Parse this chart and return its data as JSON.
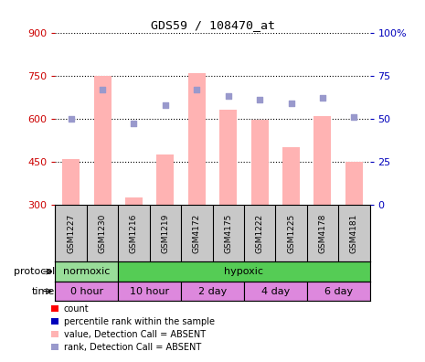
{
  "title": "GDS59 / 108470_at",
  "samples": [
    "GSM1227",
    "GSM1230",
    "GSM1216",
    "GSM1219",
    "GSM4172",
    "GSM4175",
    "GSM1222",
    "GSM1225",
    "GSM4178",
    "GSM4181"
  ],
  "bar_values": [
    460,
    750,
    325,
    475,
    760,
    630,
    595,
    500,
    610,
    450
  ],
  "rank_values": [
    50,
    67,
    47,
    58,
    67,
    63,
    61,
    59,
    62,
    51
  ],
  "ylim_left": [
    300,
    900
  ],
  "ylim_right": [
    0,
    100
  ],
  "yticks_left": [
    300,
    450,
    600,
    750,
    900
  ],
  "yticks_right": [
    0,
    25,
    50,
    75,
    100
  ],
  "bar_color": "#FFB3B3",
  "rank_color": "#9999CC",
  "sample_bg": "#C8C8C8",
  "protocol_groups": [
    {
      "label": "normoxic",
      "start": 0,
      "end": 2,
      "color": "#99DD99"
    },
    {
      "label": "hypoxic",
      "start": 2,
      "end": 10,
      "color": "#55CC55"
    }
  ],
  "time_color": "#DD88DD",
  "time_groups": [
    {
      "label": "0 hour",
      "start": 0,
      "end": 2
    },
    {
      "label": "10 hour",
      "start": 2,
      "end": 4
    },
    {
      "label": "2 day",
      "start": 4,
      "end": 6
    },
    {
      "label": "4 day",
      "start": 6,
      "end": 8
    },
    {
      "label": "6 day",
      "start": 8,
      "end": 10
    }
  ],
  "legend_items": [
    {
      "color": "#FF0000",
      "label": "count"
    },
    {
      "color": "#0000BB",
      "label": "percentile rank within the sample"
    },
    {
      "color": "#FFB3B3",
      "label": "value, Detection Call = ABSENT"
    },
    {
      "color": "#9999CC",
      "label": "rank, Detection Call = ABSENT"
    }
  ],
  "left_tick_color": "#CC0000",
  "right_tick_color": "#0000BB",
  "bar_bottom": 300,
  "grid_yticks": [
    450,
    600,
    750
  ],
  "figsize": [
    4.65,
    3.96
  ],
  "dpi": 100
}
